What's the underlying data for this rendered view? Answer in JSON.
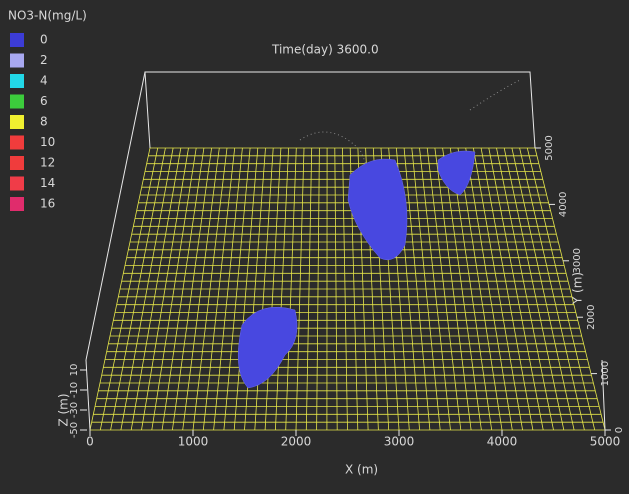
{
  "legend": {
    "title": "NO3-N(mg/L)",
    "items": [
      {
        "label": "0",
        "color": "#3c3cd6"
      },
      {
        "label": "2",
        "color": "#a8a8f0"
      },
      {
        "label": "4",
        "color": "#22d8e8"
      },
      {
        "label": "6",
        "color": "#3ccc3c"
      },
      {
        "label": "8",
        "color": "#f0f030"
      },
      {
        "label": "10",
        "color": "#f03c3c"
      },
      {
        "label": "12",
        "color": "#f03c3c"
      },
      {
        "label": "14",
        "color": "#f03c48"
      },
      {
        "label": "16",
        "color": "#e02c6c"
      }
    ]
  },
  "time_label": "Time(day) 3600.0",
  "x_axis": {
    "label": "X (m)",
    "ticks": [
      "0",
      "1000",
      "2000",
      "3000",
      "4000",
      "5000"
    ]
  },
  "y_axis": {
    "label": "Y (m)",
    "ticks": [
      "0",
      "1000",
      "2000",
      "3000",
      "4000",
      "5000"
    ]
  },
  "z_axis": {
    "label": "Z (m)",
    "ticks": [
      "10",
      "-10",
      "-30",
      "-50"
    ]
  }
}
